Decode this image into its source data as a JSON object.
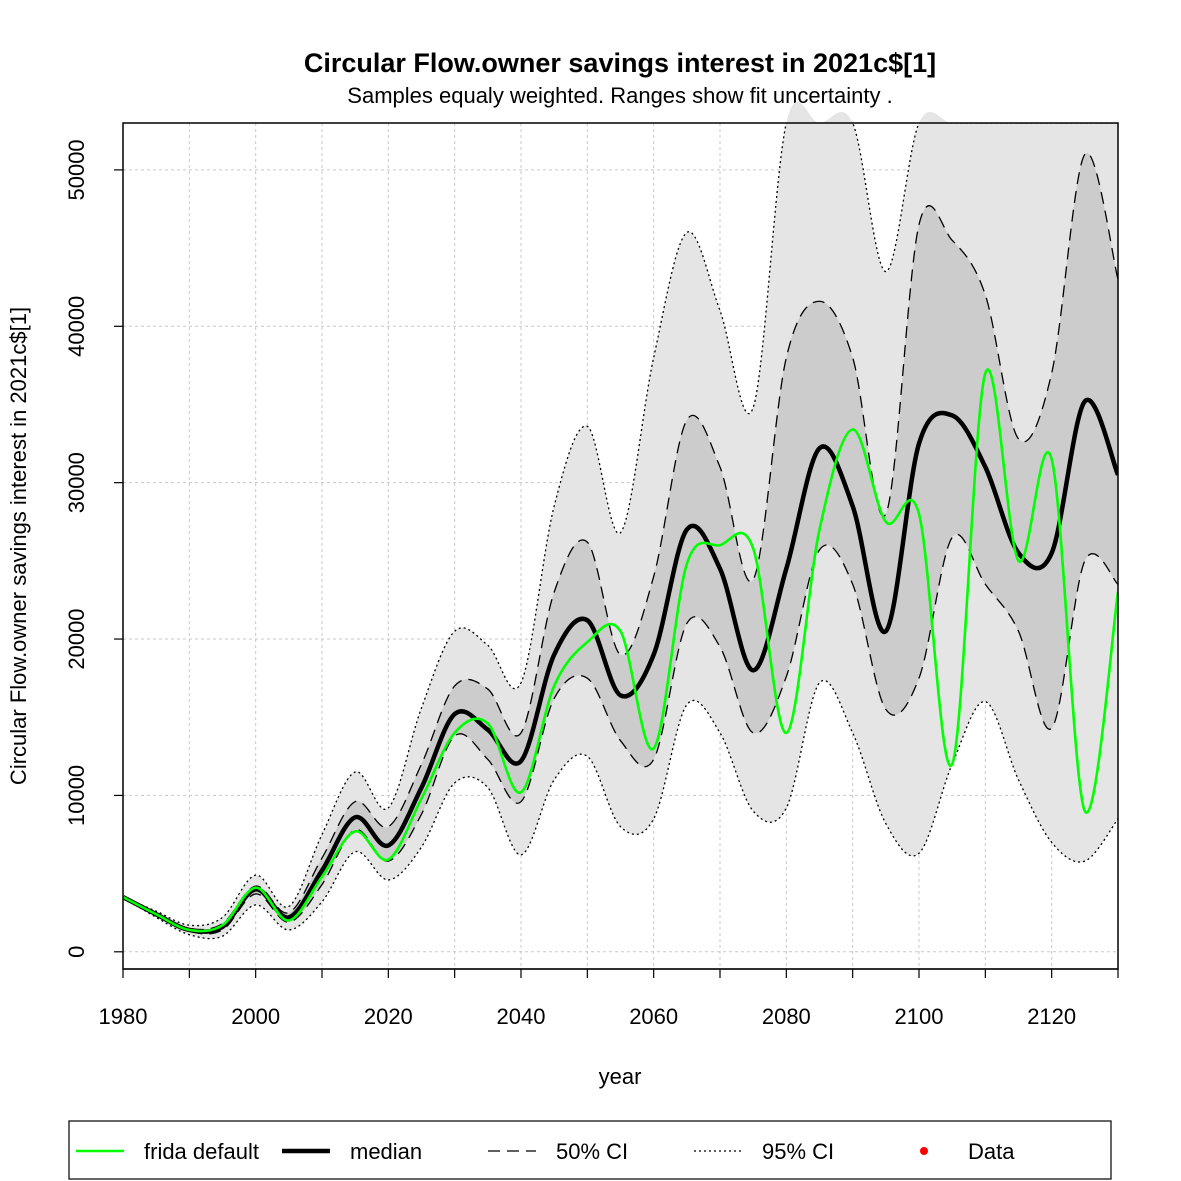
{
  "chart_data": {
    "type": "line",
    "title": "Circular Flow.owner savings interest in 2021c$[1]",
    "subtitle": "Samples equaly weighted. Ranges show  fit uncertainty .",
    "xlabel": "year",
    "ylabel": "Circular Flow.owner savings interest in 2021c$[1]",
    "xlim": [
      1980,
      2130
    ],
    "ylim": [
      -1100,
      53000
    ],
    "x_ticks": [
      "1980",
      "2000",
      "2020",
      "2040",
      "2060",
      "2080",
      "2100",
      "2120"
    ],
    "x_tick_values": [
      1980,
      2000,
      2020,
      2040,
      2060,
      2080,
      2100,
      2120
    ],
    "y_ticks": [
      "0",
      "10000",
      "20000",
      "30000",
      "40000",
      "50000"
    ],
    "y_tick_values": [
      0,
      10000,
      20000,
      30000,
      40000,
      50000
    ],
    "grid": true,
    "legend_position": "bottom",
    "legend": [
      {
        "label": "frida default",
        "style": "solid-green"
      },
      {
        "label": "median",
        "style": "solid-thick-black"
      },
      {
        "label": "50% CI",
        "style": "dashed"
      },
      {
        "label": "95% CI",
        "style": "dotted"
      },
      {
        "label": "Data",
        "style": "red-point"
      }
    ],
    "colors": {
      "frida_default": "#00ff00",
      "median": "#000000",
      "ci50_fill": "#cccccc",
      "ci95_fill": "#e5e5e5",
      "data": "#ff0000",
      "grid": "#c8c8c8"
    },
    "x": [
      1980,
      1985,
      1990,
      1995,
      2000,
      2005,
      2010,
      2015,
      2020,
      2025,
      2030,
      2035,
      2040,
      2045,
      2050,
      2055,
      2060,
      2065,
      2070,
      2075,
      2080,
      2085,
      2090,
      2095,
      2100,
      2105,
      2110,
      2115,
      2120,
      2125,
      2130
    ],
    "series": [
      {
        "name": "median",
        "values": [
          3500,
          2400,
          1400,
          1600,
          4000,
          2200,
          5200,
          8600,
          6800,
          10500,
          15200,
          14200,
          12200,
          19000,
          21200,
          16400,
          19000,
          27000,
          24500,
          18000,
          24500,
          32200,
          28500,
          20500,
          32500,
          34300,
          31000,
          25500,
          25500,
          35200,
          30500
        ]
      },
      {
        "name": "frida default",
        "values": [
          3500,
          2400,
          1400,
          1700,
          4100,
          2000,
          4800,
          7700,
          5900,
          9800,
          14000,
          14600,
          10200,
          17000,
          19800,
          20500,
          13000,
          24800,
          26000,
          25800,
          14000,
          27000,
          33400,
          27500,
          28000,
          12000,
          37000,
          25000,
          31500,
          9000,
          23000
        ]
      },
      {
        "name": "50% CI upper",
        "values": [
          3500,
          2500,
          1500,
          1800,
          4200,
          2500,
          6000,
          9600,
          8000,
          12000,
          17000,
          16800,
          14000,
          23000,
          26200,
          19000,
          24000,
          34000,
          31000,
          23800,
          38000,
          41600,
          38000,
          28000,
          46500,
          45500,
          42000,
          32800,
          37000,
          51000,
          43000
        ]
      },
      {
        "name": "50% CI lower",
        "values": [
          3500,
          2300,
          1300,
          1400,
          3700,
          1900,
          4300,
          7800,
          5800,
          8800,
          13800,
          12300,
          9600,
          16200,
          17500,
          13500,
          12300,
          21000,
          19500,
          14000,
          17600,
          25700,
          23500,
          15500,
          17500,
          26500,
          23500,
          20500,
          14300,
          25000,
          23500
        ]
      },
      {
        "name": "95% CI upper",
        "values": [
          3500,
          2600,
          1700,
          2200,
          4900,
          2900,
          7500,
          11500,
          9200,
          15600,
          20500,
          19600,
          17200,
          28500,
          33600,
          26800,
          38000,
          46000,
          41000,
          34800,
          54500,
          55000,
          53000,
          43500,
          54500,
          55000,
          55000,
          54000,
          55000,
          55000,
          55000
        ]
      },
      {
        "name": "95% CI lower",
        "values": [
          3500,
          2200,
          1100,
          1000,
          3000,
          1400,
          3200,
          6400,
          4600,
          6700,
          10800,
          10500,
          6200,
          11000,
          12500,
          8000,
          8500,
          15800,
          14000,
          9000,
          9200,
          17200,
          14000,
          8200,
          6300,
          12000,
          16000,
          11000,
          7000,
          5800,
          8500
        ]
      }
    ]
  }
}
